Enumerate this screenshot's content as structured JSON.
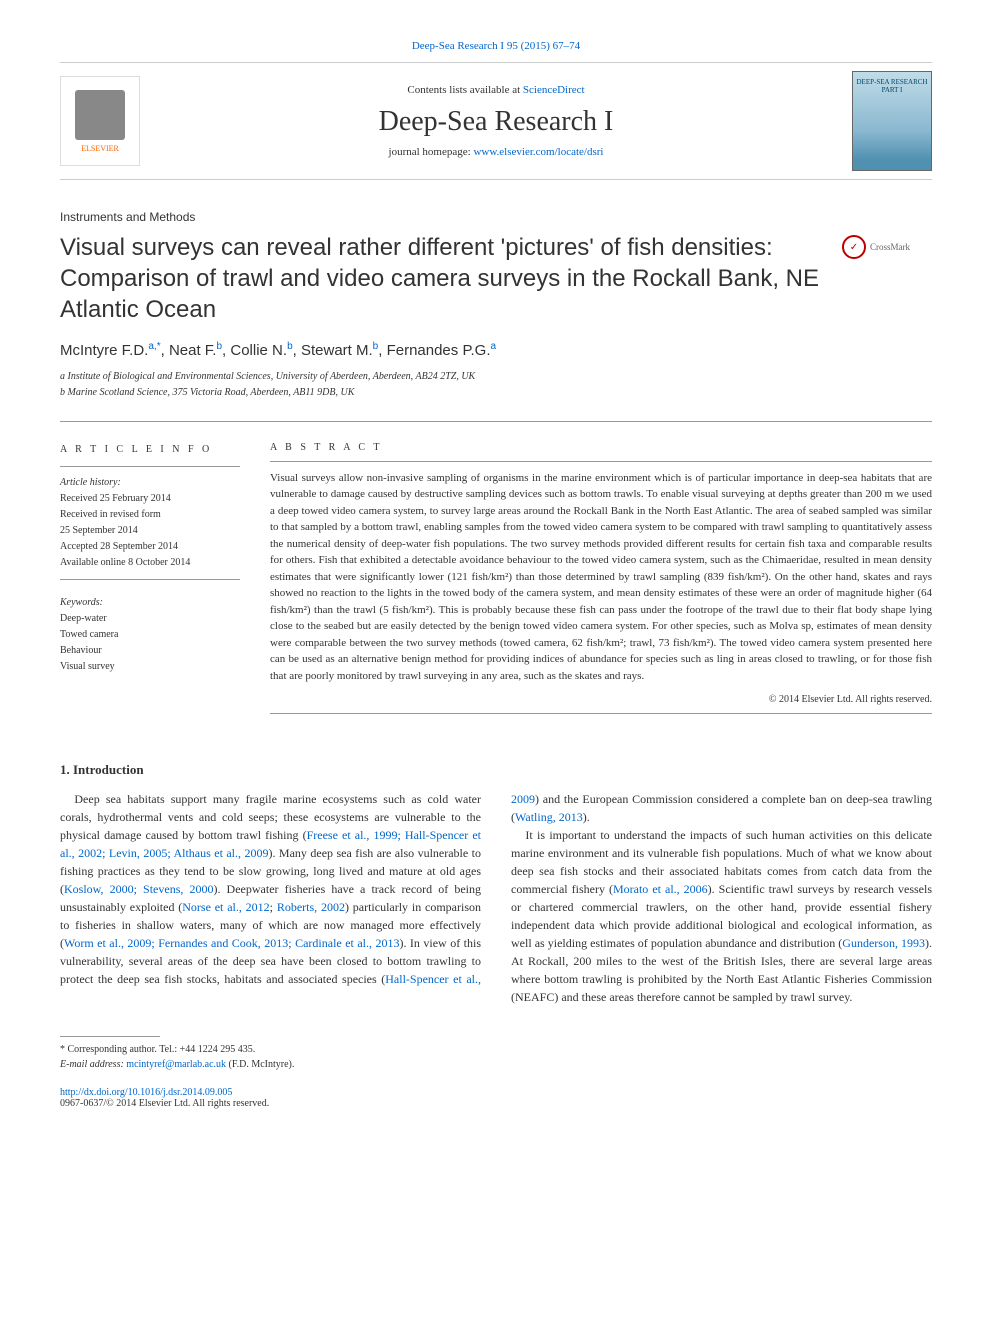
{
  "top_link": {
    "journal": "Deep-Sea Research I 95 (2015) 67–74"
  },
  "header": {
    "contents_prefix": "Contents lists available at ",
    "contents_link": "ScienceDirect",
    "journal_name": "Deep-Sea Research I",
    "homepage_prefix": "journal homepage: ",
    "homepage_link": "www.elsevier.com/locate/dsri",
    "publisher": "ELSEVIER",
    "cover_text": "DEEP-SEA RESEARCH\nPART I"
  },
  "section_label": "Instruments and Methods",
  "title": "Visual surveys can reveal rather different 'pictures' of fish densities: Comparison of trawl and video camera surveys in the Rockall Bank, NE Atlantic Ocean",
  "crossmark_label": "CrossMark",
  "authors_html": "McIntyre F.D.<sup>a,</sup>*, Neat F.<sup>b</sup>, Collie N.<sup>b</sup>, Stewart M.<sup>b</sup>, Fernandes P.G.<sup>a</sup>",
  "authors": {
    "a1": "McIntyre F.D.",
    "a1_sup": "a,*",
    "a2": "Neat F.",
    "a2_sup": "b",
    "a3": "Collie N.",
    "a3_sup": "b",
    "a4": "Stewart M.",
    "a4_sup": "b",
    "a5": "Fernandes P.G.",
    "a5_sup": "a"
  },
  "affiliations": {
    "a": "a Institute of Biological and Environmental Sciences, University of Aberdeen, Aberdeen, AB24 2TZ, UK",
    "b": "b Marine Scotland Science, 375 Victoria Road, Aberdeen, AB11 9DB, UK"
  },
  "info_heading": "A R T I C L E  I N F O",
  "history": {
    "label": "Article history:",
    "received": "Received 25 February 2014",
    "revised1": "Received in revised form",
    "revised2": "25 September 2014",
    "accepted": "Accepted 28 September 2014",
    "online": "Available online 8 October 2014"
  },
  "keywords": {
    "label": "Keywords:",
    "k1": "Deep-water",
    "k2": "Towed camera",
    "k3": "Behaviour",
    "k4": "Visual survey"
  },
  "abstract_heading": "A B S T R A C T",
  "abstract_text": "Visual surveys allow non-invasive sampling of organisms in the marine environment which is of particular importance in deep-sea habitats that are vulnerable to damage caused by destructive sampling devices such as bottom trawls. To enable visual surveying at depths greater than 200 m we used a deep towed video camera system, to survey large areas around the Rockall Bank in the North East Atlantic. The area of seabed sampled was similar to that sampled by a bottom trawl, enabling samples from the towed video camera system to be compared with trawl sampling to quantitatively assess the numerical density of deep-water fish populations. The two survey methods provided different results for certain fish taxa and comparable results for others. Fish that exhibited a detectable avoidance behaviour to the towed video camera system, such as the Chimaeridae, resulted in mean density estimates that were significantly lower (121 fish/km²) than those determined by trawl sampling (839 fish/km²). On the other hand, skates and rays showed no reaction to the lights in the towed body of the camera system, and mean density estimates of these were an order of magnitude higher (64 fish/km²) than the trawl (5 fish/km²). This is probably because these fish can pass under the footrope of the trawl due to their flat body shape lying close to the seabed but are easily detected by the benign towed video camera system. For other species, such as Molva sp, estimates of mean density were comparable between the two survey methods (towed camera, 62 fish/km²; trawl, 73 fish/km²). The towed video camera system presented here can be used as an alternative benign method for providing indices of abundance for species such as ling in areas closed to trawling, or for those fish that are poorly monitored by trawl surveying in any area, such as the skates and rays.",
  "copyright": "© 2014 Elsevier Ltd. All rights reserved.",
  "intro": {
    "heading": "1. Introduction",
    "p1_a": "Deep sea habitats support many fragile marine ecosystems such as cold water corals, hydrothermal vents and cold seeps; these ecosystems are vulnerable to the physical damage caused by bottom trawl fishing (",
    "p1_link1": "Freese et al., 1999; Hall-Spencer et al., 2002; Levin, 2005; Althaus et al., 2009",
    "p1_b": "). Many deep sea fish are also vulnerable to fishing practices as they tend to be slow growing, long lived and mature at old ages (",
    "p1_link2": "Koslow, 2000; Stevens, 2000",
    "p1_c": "). Deepwater fisheries have a track record of being unsustainably exploited (",
    "p1_link3": "Norse et al., 2012",
    "p1_c2": "; ",
    "p1_link3b": "Roberts, 2002",
    "p1_d": ") particularly in comparison to fisheries in shallow waters, many of which are now managed more effectively (",
    "p1_link4": "Worm et al., 2009; Fernandes and Cook, 2013; Cardinale et al., 2013",
    "p1_e": "). In view of this vulnerability, several areas of the deep sea have been closed to bottom trawling to protect the deep sea fish stocks, habitats and associated species (",
    "p1_link5": "Hall-Spencer et al., 2009",
    "p1_f": ") and the European Commission considered a complete ban on deep-sea trawling (",
    "p1_link6": "Watling, 2013",
    "p1_g": ").",
    "p2_a": "It is important to understand the impacts of such human activities on this delicate marine environment and its vulnerable fish populations. Much of what we know about deep sea fish stocks and their associated habitats comes from catch data from the commercial fishery (",
    "p2_link1": "Morato et al., 2006",
    "p2_b": "). Scientific trawl surveys by research vessels or chartered commercial trawlers, on the other hand, provide essential fishery independent data which provide additional biological and ecological information, as well as yielding estimates of population abundance and distribution (",
    "p2_link2": "Gunderson, 1993",
    "p2_c": "). At Rockall, 200 miles to the west of the British Isles, there are several large areas where bottom trawling is prohibited by the North East Atlantic Fisheries Commission (NEAFC) and these areas therefore cannot be sampled by trawl survey."
  },
  "footnotes": {
    "corr": "* Corresponding author. Tel.: +44 1224 295 435.",
    "email_label": "E-mail address: ",
    "email": "mcintyref@marlab.ac.uk",
    "email_suffix": " (F.D. McIntyre)."
  },
  "doi": {
    "link": "http://dx.doi.org/10.1016/j.dsr.2014.09.005",
    "issn": "0967-0637/© 2014 Elsevier Ltd. All rights reserved."
  },
  "colors": {
    "link": "#0066cc",
    "text": "#333333",
    "orange": "#ff6600",
    "red": "#bb0000"
  }
}
